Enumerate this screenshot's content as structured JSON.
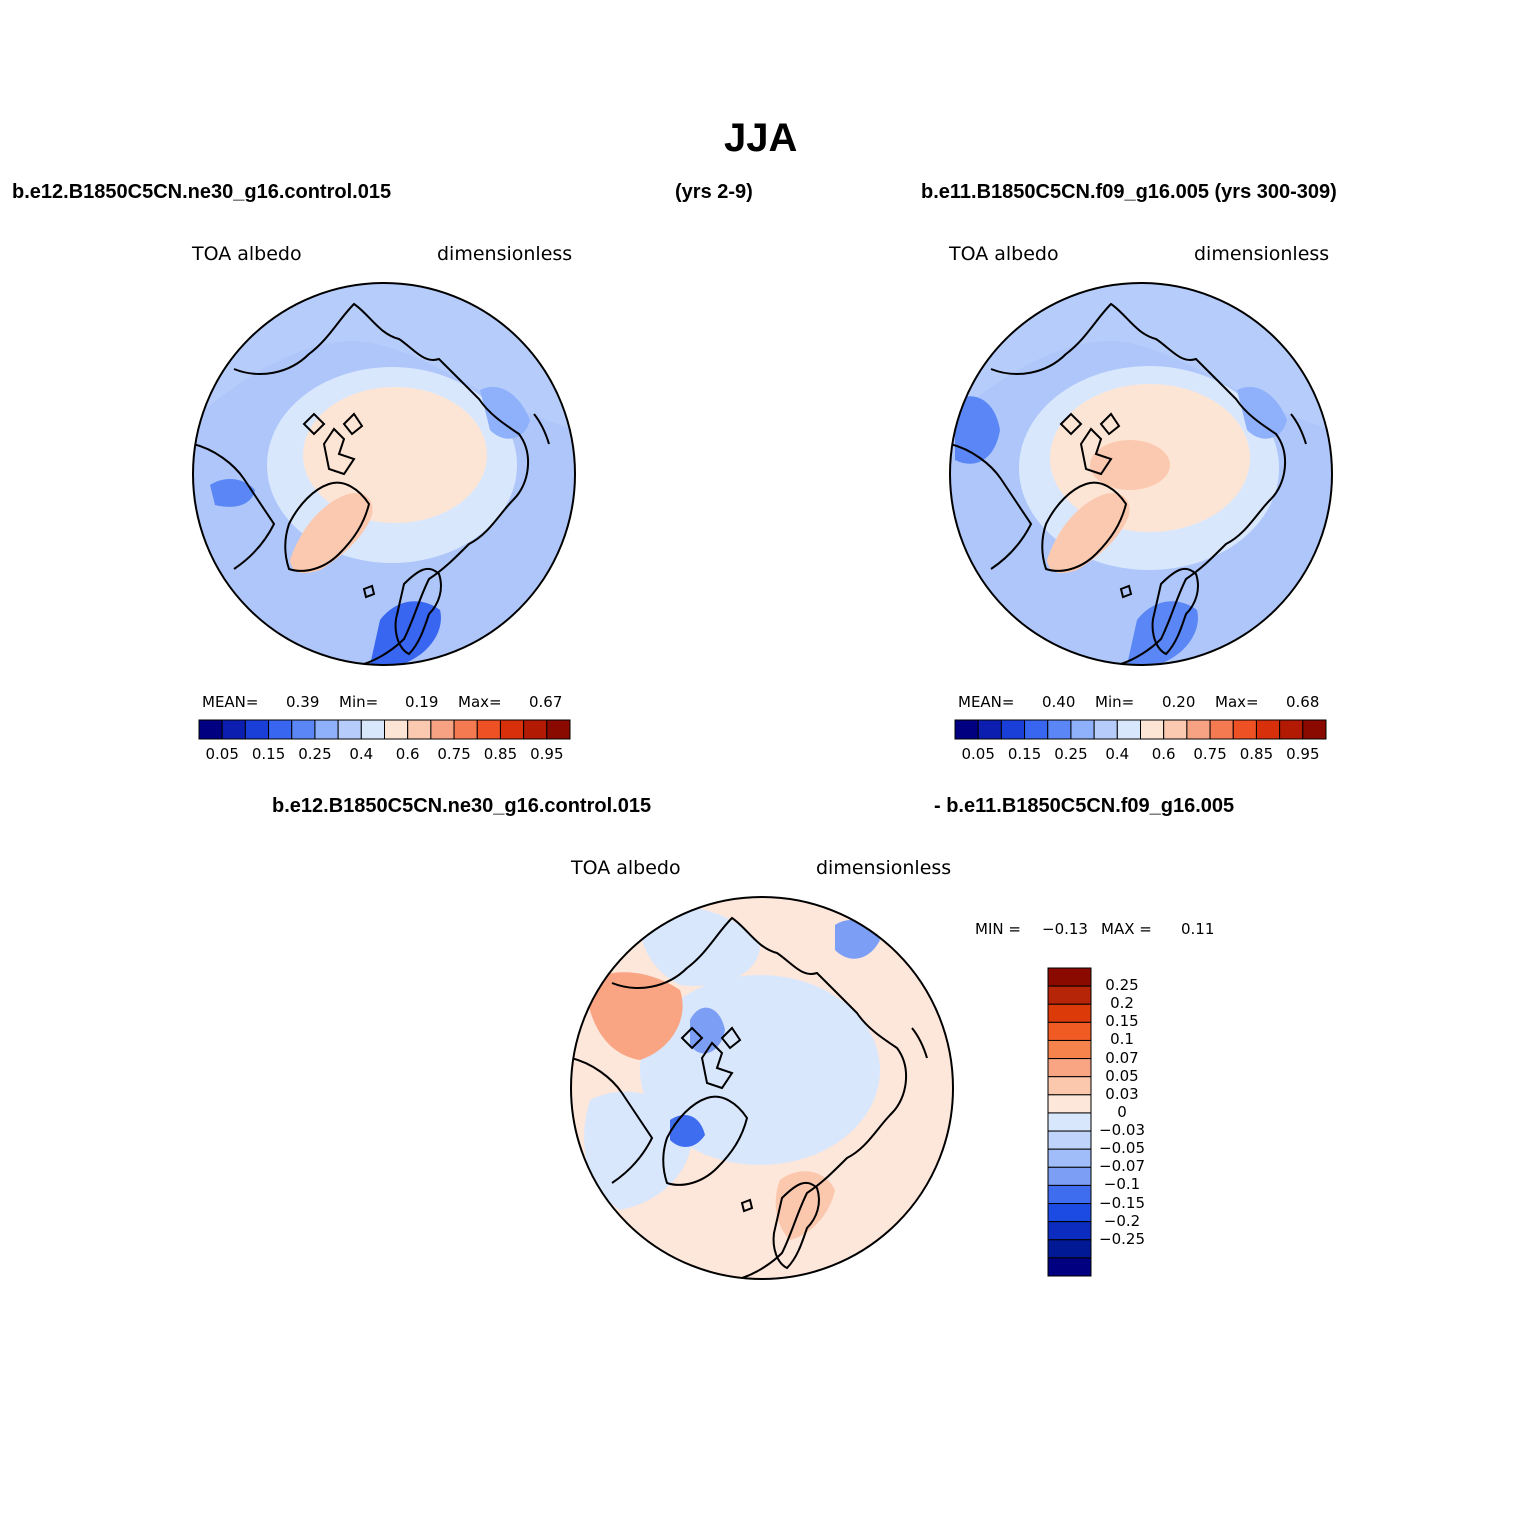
{
  "figure": {
    "title": "JJA"
  },
  "left_panel": {
    "case_label": "b.e12.B1850C5CN.ne30_g16.control.015",
    "years_label": "(yrs 2-9)",
    "field_label": "TOA albedo",
    "units_label": "dimensionless",
    "stats": {
      "mean_label": "MEAN=",
      "mean": "0.39",
      "min_label": "Min=",
      "min": "0.19",
      "max_label": "Max=",
      "max": "0.67"
    }
  },
  "right_panel": {
    "case_label": "b.e11.B1850C5CN.f09_g16.005 (yrs 300-309)",
    "field_label": "TOA albedo",
    "units_label": "dimensionless",
    "stats": {
      "mean_label": "MEAN=",
      "mean": "0.40",
      "min_label": "Min=",
      "min": "0.20",
      "max_label": "Max=",
      "max": "0.68"
    }
  },
  "diff_panel": {
    "case_a": "b.e12.B1850C5CN.ne30_g16.control.015",
    "case_b": "- b.e11.B1850C5CN.f09_g16.005",
    "field_label": "TOA albedo",
    "units_label": "dimensionless",
    "minmax": {
      "min_label": "MIN =",
      "min": "−0.13",
      "max_label": "MAX =",
      "max": "0.11"
    }
  },
  "colorbars": {
    "absolute": {
      "colors": [
        "#000080",
        "#0b1eb0",
        "#1a3fd9",
        "#3866f0",
        "#5a87f5",
        "#8fb0fa",
        "#b6cdfb",
        "#d9e7fd",
        "#fde5d6",
        "#fbc9b0",
        "#f7a383",
        "#f47a52",
        "#ee5124",
        "#d9300c",
        "#b21a04",
        "#8a0a00"
      ],
      "tick_labels": [
        "0.05",
        "0.15",
        "0.25",
        "0.4",
        "0.6",
        "0.75",
        "0.85",
        "0.95"
      ]
    },
    "difference": {
      "colors_top_to_bottom": [
        "#8a0a00",
        "#b62508",
        "#dd3a0a",
        "#ef5b22",
        "#f6834b",
        "#f9a583",
        "#fbc8ad",
        "#fde6da",
        "#d9e7fd",
        "#bfd3fb",
        "#a0bdfa",
        "#7c9ef5",
        "#3f6df0",
        "#1b4be3",
        "#0b2cbf",
        "#021995",
        "#000080"
      ],
      "tick_labels": [
        "0.25",
        "0.2",
        "0.15",
        "0.1",
        "0.07",
        "0.05",
        "0.03",
        "0",
        "−0.03",
        "−0.05",
        "−0.07",
        "−0.1",
        "−0.15",
        "−0.2",
        "−0.25"
      ]
    }
  },
  "colors": {
    "ocean_absolute": "#b6cdfb",
    "ice_absolute": "#fde5d6",
    "greenland_absolute": "#fbc9b0",
    "diff_base": "#fde6da",
    "diff_negative": "#d9e7fd"
  }
}
